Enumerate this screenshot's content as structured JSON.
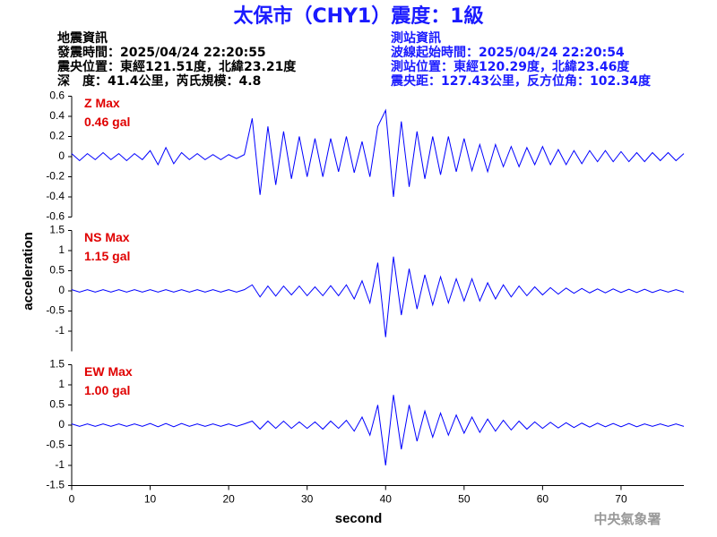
{
  "header": {
    "title": "太保市（CHY1）震度：1級",
    "info_left": [
      "地震資訊",
      "發震時間：2025/04/24 22:20:55",
      "震央位置：東經121.51度，北緯23.21度",
      "深　度：41.4公里，芮氏規模：4.8"
    ],
    "info_right": [
      "測站資訊",
      "波線起始時間：2025/04/24 22:20:54",
      "測站位置：東經120.29度，北緯23.46度",
      "震央距：127.43公里，反方位角：102.34度"
    ],
    "footer": "中央氣象署",
    "ylabel": "acceleration",
    "xlabel": "second"
  },
  "chart_data": [
    {
      "type": "line",
      "label": "Z Max",
      "max_label": "0.46 gal",
      "color": "#0000ff",
      "label_color": "#e00000",
      "xlim": [
        0,
        78
      ],
      "ylim": [
        -0.6,
        0.6
      ],
      "yticks": [
        0.6,
        0.4,
        0.2,
        0,
        -0.2,
        -0.4,
        -0.6
      ],
      "x": [
        0,
        1,
        2,
        3,
        4,
        5,
        6,
        7,
        8,
        9,
        10,
        11,
        12,
        13,
        14,
        15,
        16,
        17,
        18,
        19,
        20,
        21,
        22,
        23,
        24,
        25,
        26,
        27,
        28,
        29,
        30,
        31,
        32,
        33,
        34,
        35,
        36,
        37,
        38,
        39,
        40,
        41,
        42,
        43,
        44,
        45,
        46,
        47,
        48,
        49,
        50,
        51,
        52,
        53,
        54,
        55,
        56,
        57,
        58,
        59,
        60,
        61,
        62,
        63,
        64,
        65,
        66,
        67,
        68,
        69,
        70,
        71,
        72,
        73,
        74,
        75,
        76,
        77,
        78
      ],
      "values": [
        0.03,
        -0.04,
        0.03,
        -0.03,
        0.04,
        -0.03,
        0.03,
        -0.04,
        0.03,
        -0.03,
        0.06,
        -0.08,
        0.09,
        -0.07,
        0.04,
        -0.03,
        0.03,
        -0.03,
        0.02,
        -0.03,
        0.02,
        -0.02,
        0.02,
        0.38,
        -0.38,
        0.3,
        -0.28,
        0.25,
        -0.22,
        0.2,
        -0.2,
        0.18,
        -0.2,
        0.18,
        -0.15,
        0.2,
        -0.16,
        0.15,
        -0.2,
        0.3,
        0.46,
        -0.4,
        0.35,
        -0.3,
        0.25,
        -0.22,
        0.2,
        -0.18,
        0.2,
        -0.15,
        0.18,
        -0.14,
        0.12,
        -0.15,
        0.12,
        -0.1,
        0.1,
        -0.1,
        0.09,
        -0.08,
        0.1,
        -0.08,
        0.07,
        -0.08,
        0.06,
        -0.07,
        0.06,
        -0.05,
        0.06,
        -0.05,
        0.05,
        -0.05,
        0.04,
        -0.05,
        0.04,
        -0.04,
        0.04,
        -0.04,
        0.03
      ]
    },
    {
      "type": "line",
      "label": "NS Max",
      "max_label": "1.15 gal",
      "color": "#0000ff",
      "label_color": "#e00000",
      "xlim": [
        0,
        78
      ],
      "ylim": [
        -1.5,
        1.5
      ],
      "yticks": [
        1.5,
        1,
        0.5,
        0,
        -0.5,
        -1
      ],
      "x": [
        0,
        1,
        2,
        3,
        4,
        5,
        6,
        7,
        8,
        9,
        10,
        11,
        12,
        13,
        14,
        15,
        16,
        17,
        18,
        19,
        20,
        21,
        22,
        23,
        24,
        25,
        26,
        27,
        28,
        29,
        30,
        31,
        32,
        33,
        34,
        35,
        36,
        37,
        38,
        39,
        40,
        41,
        42,
        43,
        44,
        45,
        46,
        47,
        48,
        49,
        50,
        51,
        52,
        53,
        54,
        55,
        56,
        57,
        58,
        59,
        60,
        61,
        62,
        63,
        64,
        65,
        66,
        67,
        68,
        69,
        70,
        71,
        72,
        73,
        74,
        75,
        76,
        77,
        78
      ],
      "values": [
        0.03,
        -0.03,
        0.03,
        -0.03,
        0.03,
        -0.03,
        0.03,
        -0.03,
        0.03,
        -0.03,
        0.03,
        -0.03,
        0.03,
        -0.03,
        0.03,
        -0.03,
        0.03,
        -0.03,
        0.03,
        -0.03,
        0.03,
        -0.03,
        0.03,
        0.15,
        -0.15,
        0.12,
        -0.13,
        0.12,
        -0.1,
        0.12,
        -0.12,
        0.1,
        -0.12,
        0.13,
        -0.12,
        0.15,
        -0.2,
        0.25,
        -0.3,
        0.7,
        -1.15,
        0.85,
        -0.6,
        0.55,
        -0.45,
        0.4,
        -0.35,
        0.35,
        -0.3,
        0.3,
        -0.25,
        0.3,
        -0.25,
        0.2,
        -0.2,
        0.15,
        -0.15,
        0.12,
        -0.12,
        0.1,
        -0.1,
        0.08,
        -0.08,
        0.07,
        -0.06,
        0.06,
        -0.05,
        0.05,
        -0.05,
        0.05,
        -0.04,
        0.04,
        -0.04,
        0.04,
        -0.04,
        0.03,
        -0.03,
        0.03,
        -0.03
      ]
    },
    {
      "type": "line",
      "label": "EW Max",
      "max_label": "1.00 gal",
      "color": "#0000ff",
      "label_color": "#e00000",
      "xlim": [
        0,
        78
      ],
      "ylim": [
        -1.5,
        1.5
      ],
      "yticks": [
        1.5,
        1,
        0.5,
        0,
        -0.5,
        -1,
        -1.5
      ],
      "xticks": [
        0,
        10,
        20,
        30,
        40,
        50,
        60,
        70
      ],
      "x": [
        0,
        1,
        2,
        3,
        4,
        5,
        6,
        7,
        8,
        9,
        10,
        11,
        12,
        13,
        14,
        15,
        16,
        17,
        18,
        19,
        20,
        21,
        22,
        23,
        24,
        25,
        26,
        27,
        28,
        29,
        30,
        31,
        32,
        33,
        34,
        35,
        36,
        37,
        38,
        39,
        40,
        41,
        42,
        43,
        44,
        45,
        46,
        47,
        48,
        49,
        50,
        51,
        52,
        53,
        54,
        55,
        56,
        57,
        58,
        59,
        60,
        61,
        62,
        63,
        64,
        65,
        66,
        67,
        68,
        69,
        70,
        71,
        72,
        73,
        74,
        75,
        76,
        77,
        78
      ],
      "values": [
        0.03,
        -0.03,
        0.03,
        -0.03,
        0.03,
        -0.03,
        0.03,
        -0.03,
        0.03,
        -0.03,
        0.04,
        -0.04,
        0.04,
        -0.04,
        0.04,
        -0.03,
        0.03,
        -0.03,
        0.03,
        -0.03,
        0.03,
        -0.03,
        0.03,
        0.1,
        -0.1,
        0.1,
        -0.08,
        0.1,
        -0.08,
        0.08,
        -0.08,
        0.08,
        -0.1,
        0.1,
        -0.08,
        0.12,
        -0.15,
        0.2,
        -0.25,
        0.5,
        -1.0,
        0.75,
        -0.6,
        0.5,
        -0.4,
        0.35,
        -0.3,
        0.3,
        -0.25,
        0.25,
        -0.2,
        0.2,
        -0.18,
        0.15,
        -0.15,
        0.12,
        -0.12,
        0.1,
        -0.1,
        0.08,
        -0.08,
        0.07,
        -0.07,
        0.06,
        -0.06,
        0.05,
        -0.05,
        0.05,
        -0.04,
        0.04,
        -0.04,
        0.04,
        -0.04,
        0.03,
        -0.03,
        0.03,
        -0.03,
        0.03,
        -0.03
      ]
    }
  ]
}
